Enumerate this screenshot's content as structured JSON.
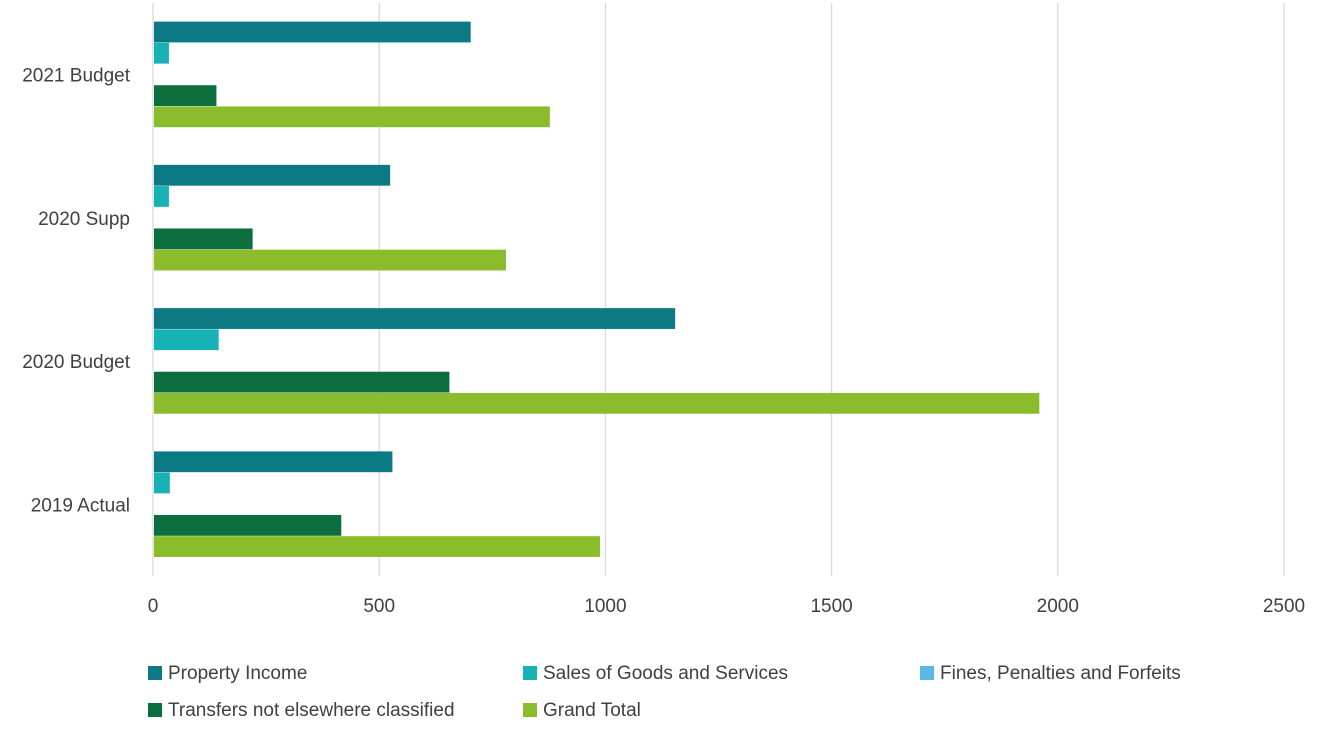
{
  "chart_data": {
    "type": "bar",
    "orientation": "horizontal",
    "title": "",
    "xlabel": "",
    "ylabel": "",
    "categories": [
      "2021 Budget",
      "2020 Supp",
      "2020 Budget",
      "2019 Actual"
    ],
    "xlim": [
      0,
      2500
    ],
    "x_ticks": [
      "0",
      "500",
      "1000",
      "1500",
      "2000",
      "2500"
    ],
    "grid": "vertical",
    "legend_position": "bottom",
    "series": [
      {
        "name": "Property Income",
        "color": "#0b7a84",
        "values": [
          700,
          522,
          1152,
          527
        ]
      },
      {
        "name": "Sales of Goods and Services",
        "color": "#17b2b6",
        "values": [
          33,
          33,
          143,
          35
        ]
      },
      {
        "name": "Fines, Penalties and Forfeits",
        "color": "#5bb8e6",
        "values": [
          0,
          0,
          0,
          0
        ]
      },
      {
        "name": "Transfers not elsewhere classified",
        "color": "#0c6e3c",
        "values": [
          138,
          218,
          653,
          414
        ]
      },
      {
        "name": "Grand Total",
        "color": "#8bbc2c",
        "values": [
          875,
          778,
          1957,
          986
        ]
      }
    ]
  }
}
